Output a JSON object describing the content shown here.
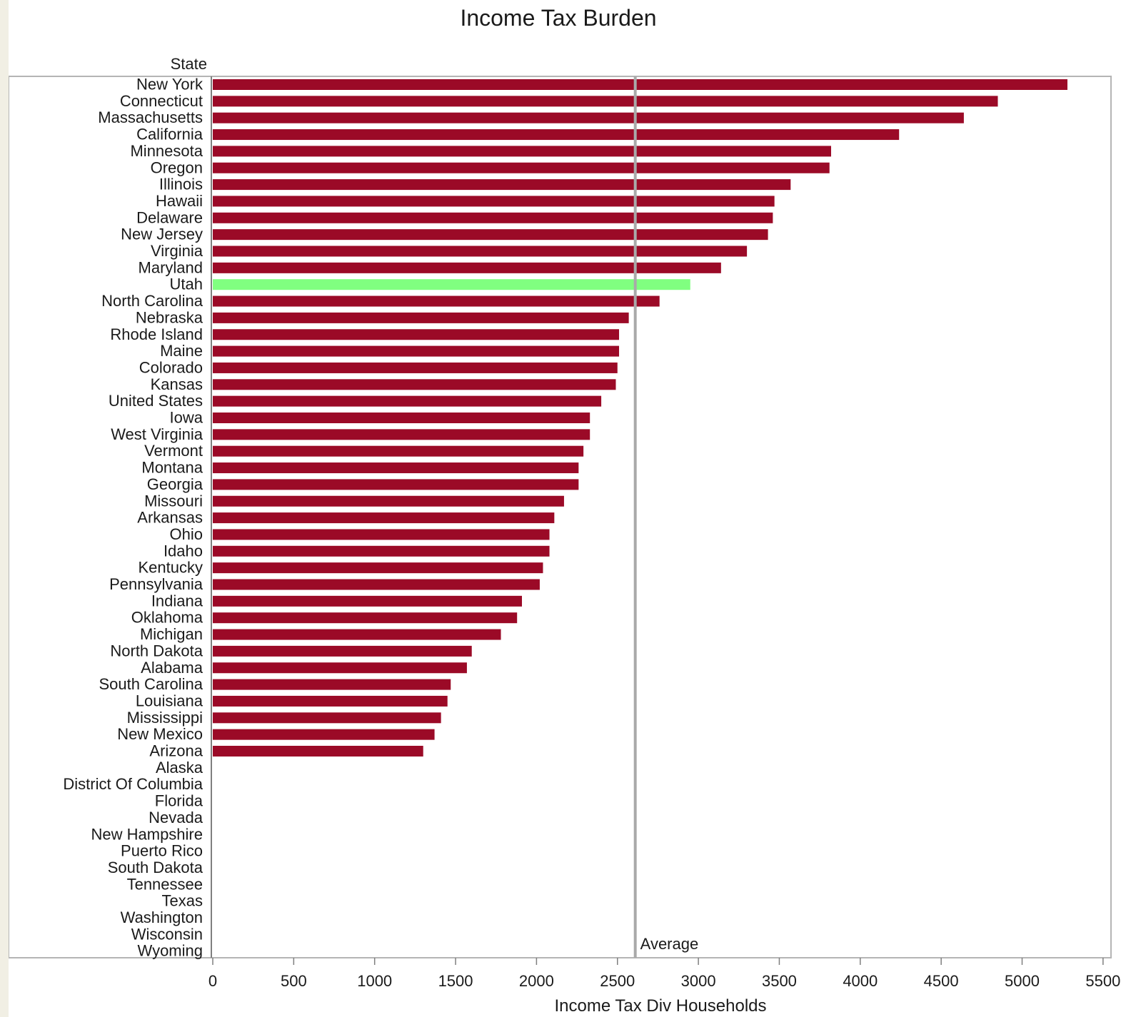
{
  "chart_data": {
    "type": "bar",
    "orientation": "horizontal",
    "title": "Income Tax Burden",
    "ylabel": "State",
    "xlabel": "Income Tax Div Households",
    "xlim": [
      0,
      5500
    ],
    "xticks": [
      0,
      500,
      1000,
      1500,
      2000,
      2500,
      3000,
      3500,
      4000,
      4500,
      5000,
      5500
    ],
    "reference_line": {
      "label": "Average",
      "value": 2610
    },
    "highlight": {
      "category": "Utah",
      "color": "#80ff80"
    },
    "bar_color": "#9b0a27",
    "grid": false,
    "categories": [
      "New York",
      "Connecticut",
      "Massachusetts",
      "California",
      "Minnesota",
      "Oregon",
      "Illinois",
      "Hawaii",
      "Delaware",
      "New Jersey",
      "Virginia",
      "Maryland",
      "Utah",
      "North Carolina",
      "Nebraska",
      "Rhode Island",
      "Maine",
      "Colorado",
      "Kansas",
      "United States",
      "Iowa",
      "West Virginia",
      "Vermont",
      "Montana",
      "Georgia",
      "Missouri",
      "Arkansas",
      "Ohio",
      "Idaho",
      "Kentucky",
      "Pennsylvania",
      "Indiana",
      "Oklahoma",
      "Michigan",
      "North Dakota",
      "Alabama",
      "South Carolina",
      "Louisiana",
      "Mississippi",
      "New Mexico",
      "Arizona",
      "Alaska",
      "District Of Columbia",
      "Florida",
      "Nevada",
      "New Hampshire",
      "Puerto Rico",
      "South Dakota",
      "Tennessee",
      "Texas",
      "Washington",
      "Wisconsin",
      "Wyoming"
    ],
    "values": [
      5280,
      4850,
      4640,
      4240,
      3820,
      3810,
      3570,
      3470,
      3460,
      3430,
      3300,
      3140,
      2950,
      2760,
      2570,
      2510,
      2510,
      2500,
      2490,
      2400,
      2330,
      2330,
      2290,
      2260,
      2260,
      2170,
      2110,
      2080,
      2080,
      2040,
      2020,
      1910,
      1880,
      1780,
      1600,
      1570,
      1470,
      1450,
      1410,
      1370,
      1300,
      0,
      0,
      0,
      0,
      0,
      0,
      0,
      0,
      0,
      0,
      0,
      0
    ]
  }
}
